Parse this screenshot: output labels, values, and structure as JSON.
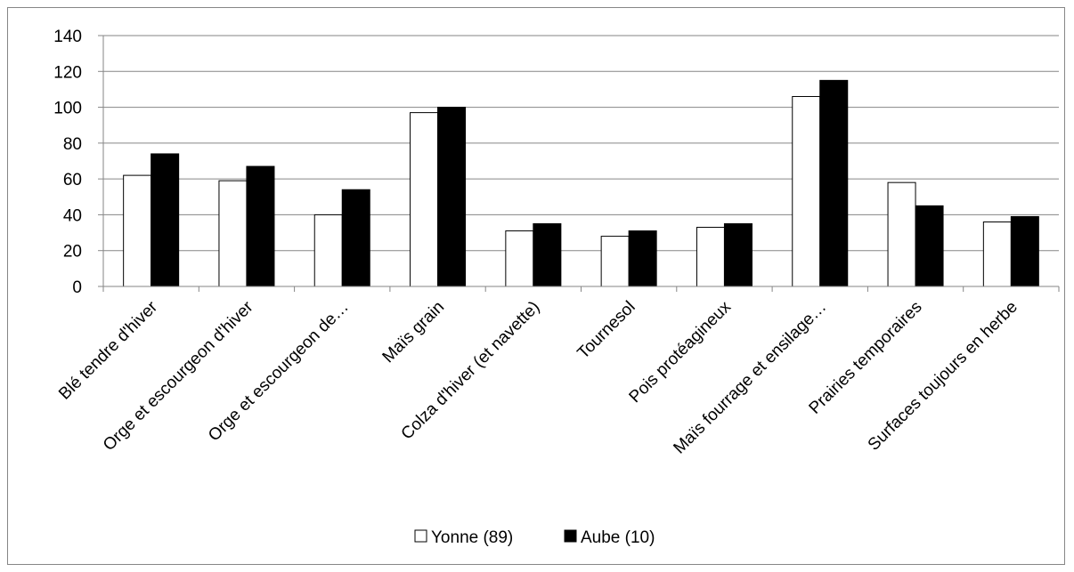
{
  "chart_data": {
    "type": "bar",
    "categories": [
      "Blé tendre d'hiver",
      "Orge et escourgeon d'hiver",
      "Orge et escourgeon de…",
      "Maïs grain",
      "Colza d'hiver (et navette)",
      "Tournesol",
      "Pois protéagineux",
      "Maïs fourrage et ensilage…",
      "Prairies temporaires",
      "Surfaces toujours en herbe"
    ],
    "series": [
      {
        "name": "Yonne (89)",
        "color": "#ffffff",
        "values": [
          62,
          59,
          40,
          97,
          31,
          28,
          33,
          106,
          58,
          36
        ]
      },
      {
        "name": "Aube (10)",
        "color": "#000000",
        "values": [
          74,
          67,
          54,
          100,
          35,
          31,
          35,
          115,
          45,
          39
        ]
      }
    ],
    "ylim": [
      0,
      140
    ],
    "yticks": [
      0,
      20,
      40,
      60,
      80,
      100,
      120,
      140
    ],
    "grid": true,
    "legend": "bottom"
  }
}
